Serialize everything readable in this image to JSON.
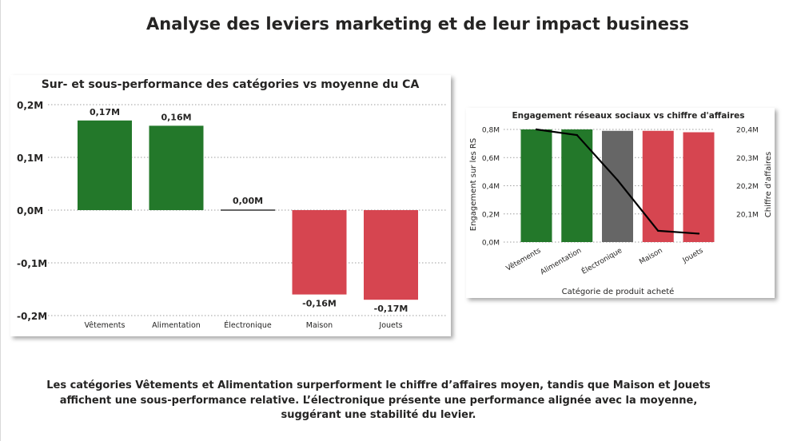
{
  "page": {
    "title": "Analyse des leviers marketing et de leur impact business",
    "footer_text": "Les catégories Vêtements et Alimentation surperforment le chiffre d’affaires moyen, tandis que Maison et Jouets affichent une sous-performance relative. L’électronique présente une performance alignée avec la moyenne, suggérant une stabilité du levier."
  },
  "colors": {
    "positive": "#23782a",
    "negative": "#d64550",
    "neutral": "#666666",
    "line": "#000000",
    "text": "#252423",
    "grid": "#9e9e9e"
  },
  "chart_data": [
    {
      "type": "bar",
      "title": "Sur- et sous-performance des catégories vs moyenne du CA",
      "xlabel": "",
      "ylabel": "",
      "categories": [
        "Vêtements",
        "Alimentation",
        "Électronique",
        "Maison",
        "Jouets"
      ],
      "values": [
        0.17,
        0.16,
        0.0,
        -0.16,
        -0.17
      ],
      "data_labels": [
        "0,17M",
        "0,16M",
        "0,00M",
        "-0,16M",
        "-0,17M"
      ],
      "bar_colors": [
        "#23782a",
        "#23782a",
        "#666666",
        "#d64550",
        "#d64550"
      ],
      "y_unit": "M",
      "ylim": [
        -0.2,
        0.2
      ],
      "y_ticks": [
        0.2,
        0.1,
        0.0,
        -0.1,
        -0.2
      ],
      "y_tick_labels": [
        "0,2M",
        "0,1M",
        "0,0M",
        "-0,1M",
        "-0,2M"
      ],
      "grid": true,
      "legend": "none"
    },
    {
      "type": "bar",
      "title": "Engagement réseaux sociaux vs chiffre d'affaires",
      "xlabel": "Catégorie de produit acheté",
      "ylabel": "Engagement sur les RS",
      "y2label": "Chiffre d'affaires",
      "categories": [
        "Vêtements",
        "Alimentation",
        "Électronique",
        "Maison",
        "Jouets"
      ],
      "series": [
        {
          "kind": "bar",
          "axis": "left",
          "values": [
            0.8,
            0.8,
            0.79,
            0.79,
            0.78
          ],
          "unit": "M"
        },
        {
          "kind": "line",
          "axis": "right",
          "values": [
            20.4,
            20.38,
            20.22,
            20.04,
            20.03
          ],
          "unit": "M"
        }
      ],
      "bar_colors": [
        "#23782a",
        "#23782a",
        "#666666",
        "#d64550",
        "#d64550"
      ],
      "ylim": [
        0,
        0.8
      ],
      "y_ticks": [
        0.8,
        0.6,
        0.4,
        0.2,
        0.0
      ],
      "y_tick_labels": [
        "0,8M",
        "0,6M",
        "0,4M",
        "0,2M",
        "0,0M"
      ],
      "y2lim": [
        20.0,
        20.4
      ],
      "y2_ticks": [
        20.4,
        20.3,
        20.2,
        20.1
      ],
      "y2_tick_labels": [
        "20,4M",
        "20,3M",
        "20,2M",
        "20,1M"
      ],
      "grid": true,
      "legend": "none"
    }
  ]
}
